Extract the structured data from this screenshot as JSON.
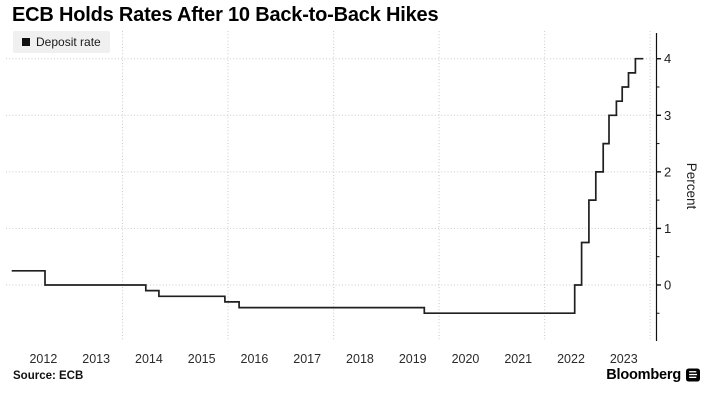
{
  "title": "ECB Holds Rates After 10 Back-to-Back Hikes",
  "legend": {
    "items": [
      {
        "label": "Deposit rate",
        "swatch_color": "#111111"
      }
    ]
  },
  "footer": {
    "source": "Source: ECB",
    "brand": "Bloomberg"
  },
  "colors": {
    "line": "#1f1f1f",
    "grid": "#c9c9c9",
    "axis": "#111111",
    "tick_text": "#2b2b2b",
    "legend_bg": "#f0f0f0"
  },
  "chart_data": {
    "type": "line",
    "step": true,
    "title": "ECB Holds Rates After 10 Back-to-Back Hikes",
    "xlabel": "",
    "ylabel": "Percent",
    "grid": "dotted",
    "legend_position": "top-left",
    "axis_side": "right",
    "xlim": [
      2011.81,
      2024.13
    ],
    "ylim": [
      -0.92,
      4.455
    ],
    "x_tick_labels": [
      "2012",
      "2013",
      "2014",
      "2015",
      "2016",
      "2017",
      "2018",
      "2019",
      "2020",
      "2021",
      "2022",
      "2023"
    ],
    "x_tick_years": [
      2012,
      2013,
      2014,
      2015,
      2016,
      2017,
      2018,
      2019,
      2020,
      2021,
      2022,
      2023
    ],
    "x_gridline_years": [
      2014,
      2016,
      2018,
      2020,
      2022,
      2024
    ],
    "y_ticks": [
      0,
      1,
      2,
      3,
      4
    ],
    "y_tick_labels": [
      "0",
      "1",
      "2",
      "3",
      "4"
    ],
    "y_minor_ticks": [
      -0.5,
      0.5,
      1.5,
      2.5,
      3.5
    ],
    "series": [
      {
        "name": "Deposit rate",
        "color": "#1f1f1f",
        "end_t": 2023.87,
        "points": [
          {
            "date": "2011-12",
            "t": 2011.9,
            "v": 0.25
          },
          {
            "date": "2012-07",
            "t": 2012.53,
            "v": 0.0
          },
          {
            "date": "2014-06",
            "t": 2014.44,
            "v": -0.1
          },
          {
            "date": "2014-09",
            "t": 2014.69,
            "v": -0.2
          },
          {
            "date": "2015-12",
            "t": 2015.94,
            "v": -0.3
          },
          {
            "date": "2016-03",
            "t": 2016.21,
            "v": -0.4
          },
          {
            "date": "2019-09",
            "t": 2019.72,
            "v": -0.5
          },
          {
            "date": "2022-07",
            "t": 2022.57,
            "v": 0.0
          },
          {
            "date": "2022-09",
            "t": 2022.7,
            "v": 0.75
          },
          {
            "date": "2022-11",
            "t": 2022.84,
            "v": 1.5
          },
          {
            "date": "2022-12",
            "t": 2022.97,
            "v": 2.0
          },
          {
            "date": "2023-02",
            "t": 2023.11,
            "v": 2.5
          },
          {
            "date": "2023-03",
            "t": 2023.22,
            "v": 3.0
          },
          {
            "date": "2023-05",
            "t": 2023.36,
            "v": 3.25
          },
          {
            "date": "2023-06",
            "t": 2023.47,
            "v": 3.5
          },
          {
            "date": "2023-08",
            "t": 2023.59,
            "v": 3.75
          },
          {
            "date": "2023-09",
            "t": 2023.72,
            "v": 4.0
          }
        ]
      }
    ]
  }
}
